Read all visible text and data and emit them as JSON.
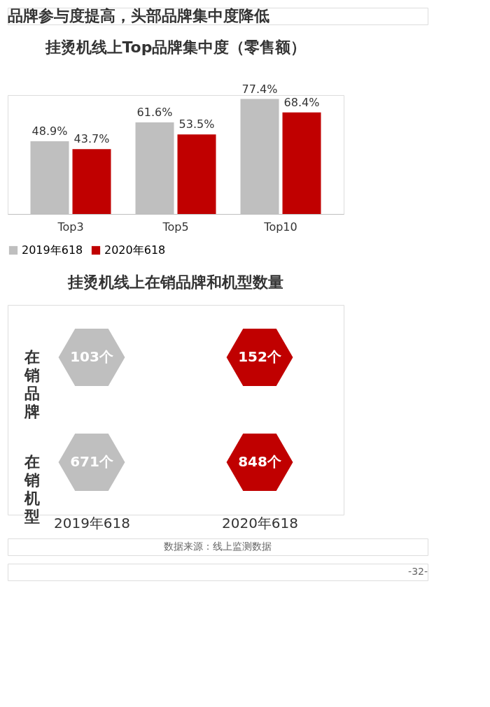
{
  "chart_data": [
    {
      "type": "bar",
      "title": "挂烫机线上Top品牌集中度（零售额）",
      "annotations": [
        "品牌参与度提高，头部品牌集中度降低"
      ],
      "categories": [
        "Top3",
        "Top5",
        "Top10"
      ],
      "series": [
        {
          "name": "2019年618",
          "color": "#bfbfbf",
          "values": [
            48.9,
            61.6,
            77.4
          ],
          "value_labels": [
            "48.9%",
            "61.6%",
            "77.4%"
          ]
        },
        {
          "name": "2020年618",
          "color": "#c00000",
          "values": [
            43.7,
            53.5,
            68.4
          ],
          "value_labels": [
            "43.7%",
            "53.5%",
            "68.4%"
          ]
        }
      ],
      "legend": "bottom",
      "grid": false
    },
    {
      "type": "other",
      "title": "挂烫机线上在销品牌和机型数量",
      "annotations": [
        "数据来源：线上监测数据",
        "-32-"
      ],
      "categories": [
        "2019年618",
        "2020年618"
      ],
      "series": [
        {
          "name": "在销品牌",
          "colors": [
            "#bfbfbf",
            "#c00000"
          ],
          "values": [
            103,
            152
          ],
          "value_labels": [
            "103个",
            "152个"
          ]
        },
        {
          "name": "在销机型",
          "colors": [
            "#bfbfbf",
            "#c00000"
          ],
          "values": [
            671,
            848
          ],
          "value_labels": [
            "671个",
            "848个"
          ]
        }
      ]
    }
  ]
}
